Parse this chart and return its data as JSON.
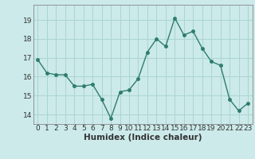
{
  "x": [
    0,
    1,
    2,
    3,
    4,
    5,
    6,
    7,
    8,
    9,
    10,
    11,
    12,
    13,
    14,
    15,
    16,
    17,
    18,
    19,
    20,
    21,
    22,
    23
  ],
  "y": [
    16.9,
    16.2,
    16.1,
    16.1,
    15.5,
    15.5,
    15.6,
    14.8,
    13.8,
    15.2,
    15.3,
    15.9,
    17.3,
    18.0,
    17.6,
    19.1,
    18.2,
    18.4,
    17.5,
    16.8,
    16.6,
    14.8,
    14.2,
    14.6
  ],
  "line_color": "#2e7d6e",
  "marker": "o",
  "marker_size": 2.5,
  "bg_color": "#cceaea",
  "grid_color": "#aad4d4",
  "axis_color": "#333333",
  "xlabel": "Humidex (Indice chaleur)",
  "xlabel_fontsize": 7.5,
  "tick_fontsize": 6.5,
  "ylim": [
    13.5,
    19.8
  ],
  "xlim": [
    -0.5,
    23.5
  ],
  "yticks": [
    14,
    15,
    16,
    17,
    18,
    19
  ],
  "xtick_labels": [
    "0",
    "1",
    "2",
    "3",
    "4",
    "5",
    "6",
    "7",
    "8",
    "9",
    "10",
    "11",
    "12",
    "13",
    "14",
    "15",
    "16",
    "17",
    "18",
    "19",
    "20",
    "21",
    "22",
    "23"
  ]
}
